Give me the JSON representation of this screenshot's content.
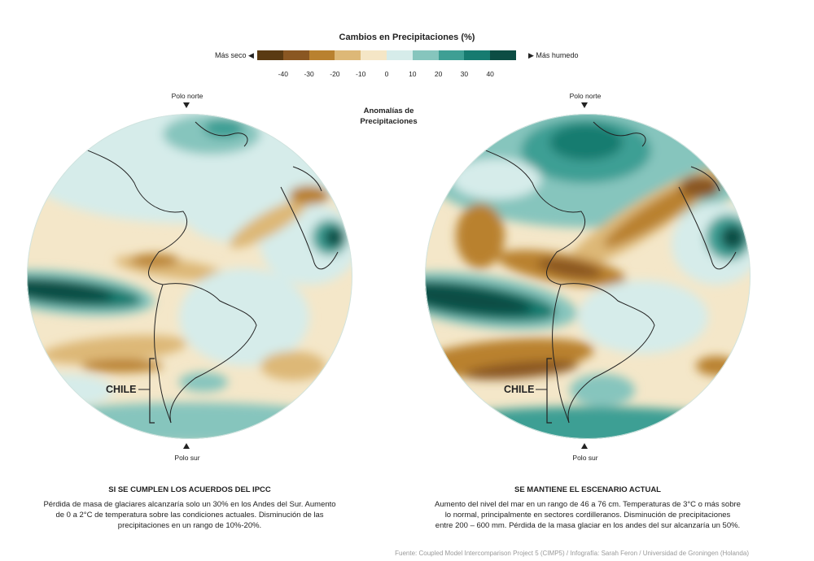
{
  "legend": {
    "title": "Cambios en Precipitaciones (%)",
    "drier_label": "Más seco",
    "wetter_label": "Más humedo",
    "ticks": [
      "-40",
      "-30",
      "-20",
      "-10",
      "0",
      "10",
      "20",
      "30",
      "40"
    ],
    "colors": [
      "#5a3a12",
      "#8a5722",
      "#b9812f",
      "#ddb877",
      "#f5e6c6",
      "#d6ecea",
      "#86c5bd",
      "#3e9f94",
      "#167b70",
      "#0c4d44"
    ]
  },
  "center_title": "Anomalías de Precipitaciones",
  "maps": [
    {
      "north_pole": "Polo norte",
      "south_pole": "Polo sur",
      "country_label": "CHILE",
      "caption_title": "SI SE CUMPLEN LOS ACUERDOS DEL IPCC",
      "caption_lines": [
        "Pérdida de masa de glaciares alcanzaría solo un 30% en los Andes del Sur. Aumento",
        "de 0 a 2°C de temperatura sobre las condiciones actuales. Disminución de las",
        "precipitaciones en un rango de 10%-20%."
      ]
    },
    {
      "north_pole": "Polo norte",
      "south_pole": "Polo sur",
      "country_label": "CHILE",
      "caption_title": "SE MANTIENE EL ESCENARIO ACTUAL",
      "caption_lines": [
        "Aumento del nivel del mar en un rango de 46 a 76 cm. Temperaturas de 3°C o más sobre",
        "lo normal, principalmente en sectores cordilleranos. Disminución de precipitaciones",
        "entre 200 – 600 mm. Pérdida de la masa glaciar en los andes del sur alcanzaría un 50%."
      ]
    }
  ],
  "source": "Fuente: Coupled Model Intercomparison Project 5 (CIMP5)  /  Infografía: Sarah Feron  /  Universidad de Groningen (Holanda)"
}
